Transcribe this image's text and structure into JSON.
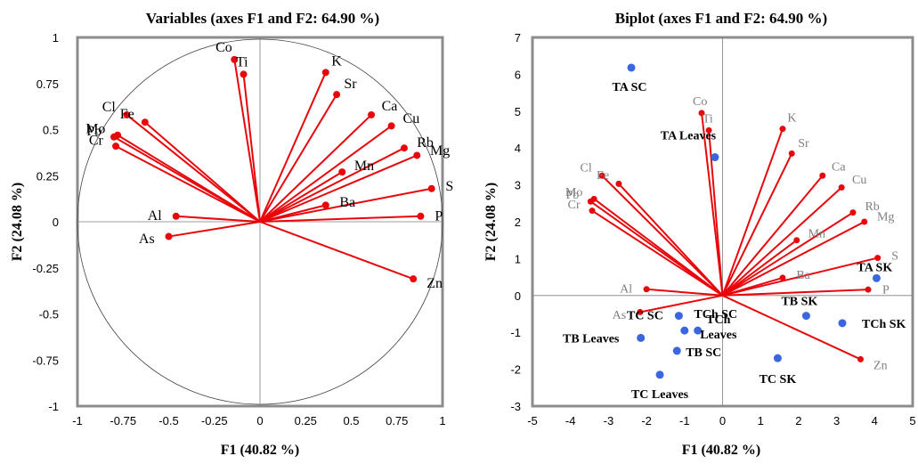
{
  "colors": {
    "vector": "#e8060b",
    "observation": "#3a66e0",
    "frame": "#8c8c8c",
    "axis": "#7f7f7f",
    "grey_label": "#7f7f7f"
  },
  "chart_data": [
    {
      "type": "scatter",
      "name": "correlation-circle",
      "title": "Variables (axes F1 and F2: 64.90 %)",
      "xlabel": "F1 (40.82 %)",
      "ylabel": "F2 (24.08 %)",
      "xlim": [
        -1,
        1
      ],
      "ylim": [
        -1,
        1
      ],
      "xticks": [
        "-1",
        "-0.75",
        "-0.5",
        "-0.25",
        "0",
        "0.25",
        "0.5",
        "0.75",
        "1"
      ],
      "yticks": [
        "-1",
        "-0.75",
        "-0.5",
        "-0.25",
        "0",
        "0.25",
        "0.5",
        "0.75",
        "1"
      ],
      "unit_circle": true,
      "variables": [
        {
          "label": "Co",
          "x": -0.14,
          "y": 0.88
        },
        {
          "label": "Ti",
          "x": -0.09,
          "y": 0.8
        },
        {
          "label": "K",
          "x": 0.36,
          "y": 0.81
        },
        {
          "label": "Sr",
          "x": 0.42,
          "y": 0.69
        },
        {
          "label": "Ca",
          "x": 0.61,
          "y": 0.58
        },
        {
          "label": "Cu",
          "x": 0.72,
          "y": 0.52
        },
        {
          "label": "Rb",
          "x": 0.79,
          "y": 0.4
        },
        {
          "label": "Mg",
          "x": 0.86,
          "y": 0.36
        },
        {
          "label": "Mn",
          "x": 0.45,
          "y": 0.27
        },
        {
          "label": "S",
          "x": 0.94,
          "y": 0.18
        },
        {
          "label": "Ba",
          "x": 0.36,
          "y": 0.09
        },
        {
          "label": "P",
          "x": 0.88,
          "y": 0.03
        },
        {
          "label": "Zn",
          "x": 0.84,
          "y": -0.31
        },
        {
          "label": "Cl",
          "x": -0.73,
          "y": 0.58
        },
        {
          "label": "Fe",
          "x": -0.63,
          "y": 0.54
        },
        {
          "label": "Mo",
          "x": -0.78,
          "y": 0.47
        },
        {
          "label": "Pb",
          "x": -0.8,
          "y": 0.46
        },
        {
          "label": "Cr",
          "x": -0.79,
          "y": 0.41
        },
        {
          "label": "Al",
          "x": -0.46,
          "y": 0.03
        },
        {
          "label": "As",
          "x": -0.5,
          "y": -0.08
        }
      ]
    },
    {
      "type": "scatter",
      "name": "biplot",
      "title": "Biplot (axes F1 and F2: 64.90 %)",
      "xlabel": "F1 (40.82 %)",
      "ylabel": "F2 (24.08 %)",
      "xlim": [
        -5,
        5
      ],
      "ylim": [
        -3,
        7
      ],
      "xticks": [
        "-5",
        "-4",
        "-3",
        "-2",
        "-1",
        "0",
        "1",
        "2",
        "3",
        "4",
        "5"
      ],
      "yticks": [
        "-3",
        "-2",
        "-1",
        "0",
        "1",
        "2",
        "3",
        "4",
        "5",
        "6",
        "7"
      ],
      "variables": [
        {
          "label": "Co",
          "x": -0.55,
          "y": 4.95
        },
        {
          "label": "Ti",
          "x": -0.36,
          "y": 4.48
        },
        {
          "label": "K",
          "x": 1.58,
          "y": 4.52
        },
        {
          "label": "Sr",
          "x": 1.82,
          "y": 3.85
        },
        {
          "label": "Ca",
          "x": 2.63,
          "y": 3.25
        },
        {
          "label": "Cu",
          "x": 3.13,
          "y": 2.93
        },
        {
          "label": "Rb",
          "x": 3.43,
          "y": 2.25
        },
        {
          "label": "Mg",
          "x": 3.73,
          "y": 2.0
        },
        {
          "label": "Mn",
          "x": 1.95,
          "y": 1.5
        },
        {
          "label": "S",
          "x": 4.08,
          "y": 1.02
        },
        {
          "label": "Ba",
          "x": 1.58,
          "y": 0.48
        },
        {
          "label": "P",
          "x": 3.83,
          "y": 0.16
        },
        {
          "label": "Zn",
          "x": 3.63,
          "y": -1.73
        },
        {
          "label": "Cl",
          "x": -3.17,
          "y": 3.25
        },
        {
          "label": "Fe",
          "x": -2.73,
          "y": 3.03
        },
        {
          "label": "Mo",
          "x": -3.38,
          "y": 2.62
        },
        {
          "label": "Pb",
          "x": -3.47,
          "y": 2.55
        },
        {
          "label": "Cr",
          "x": -3.43,
          "y": 2.3
        },
        {
          "label": "Al",
          "x": -2.0,
          "y": 0.17
        },
        {
          "label": "As",
          "x": -2.17,
          "y": -0.45
        }
      ],
      "observations": [
        {
          "label": "TA SC",
          "x": -2.4,
          "y": 6.18
        },
        {
          "label": "TA Leaves",
          "x": -0.2,
          "y": 3.75
        },
        {
          "label": "TA SK",
          "x": 4.05,
          "y": 0.47
        },
        {
          "label": "TB SK",
          "x": 2.2,
          "y": -0.55
        },
        {
          "label": "TCh SK",
          "x": 3.15,
          "y": -0.75
        },
        {
          "label": "TC SK",
          "x": 1.45,
          "y": -1.7
        },
        {
          "label": "TC SC",
          "x": -1.15,
          "y": -0.55
        },
        {
          "label": "TCh SC",
          "x": -0.65,
          "y": -0.95
        },
        {
          "label": "TCh Leaves",
          "x": -1.0,
          "y": -0.95
        },
        {
          "label": "TB SC",
          "x": -1.2,
          "y": -1.5
        },
        {
          "label": "TB Leaves",
          "x": -2.15,
          "y": -1.15
        },
        {
          "label": "TC Leaves",
          "x": -1.65,
          "y": -2.15
        }
      ]
    }
  ]
}
